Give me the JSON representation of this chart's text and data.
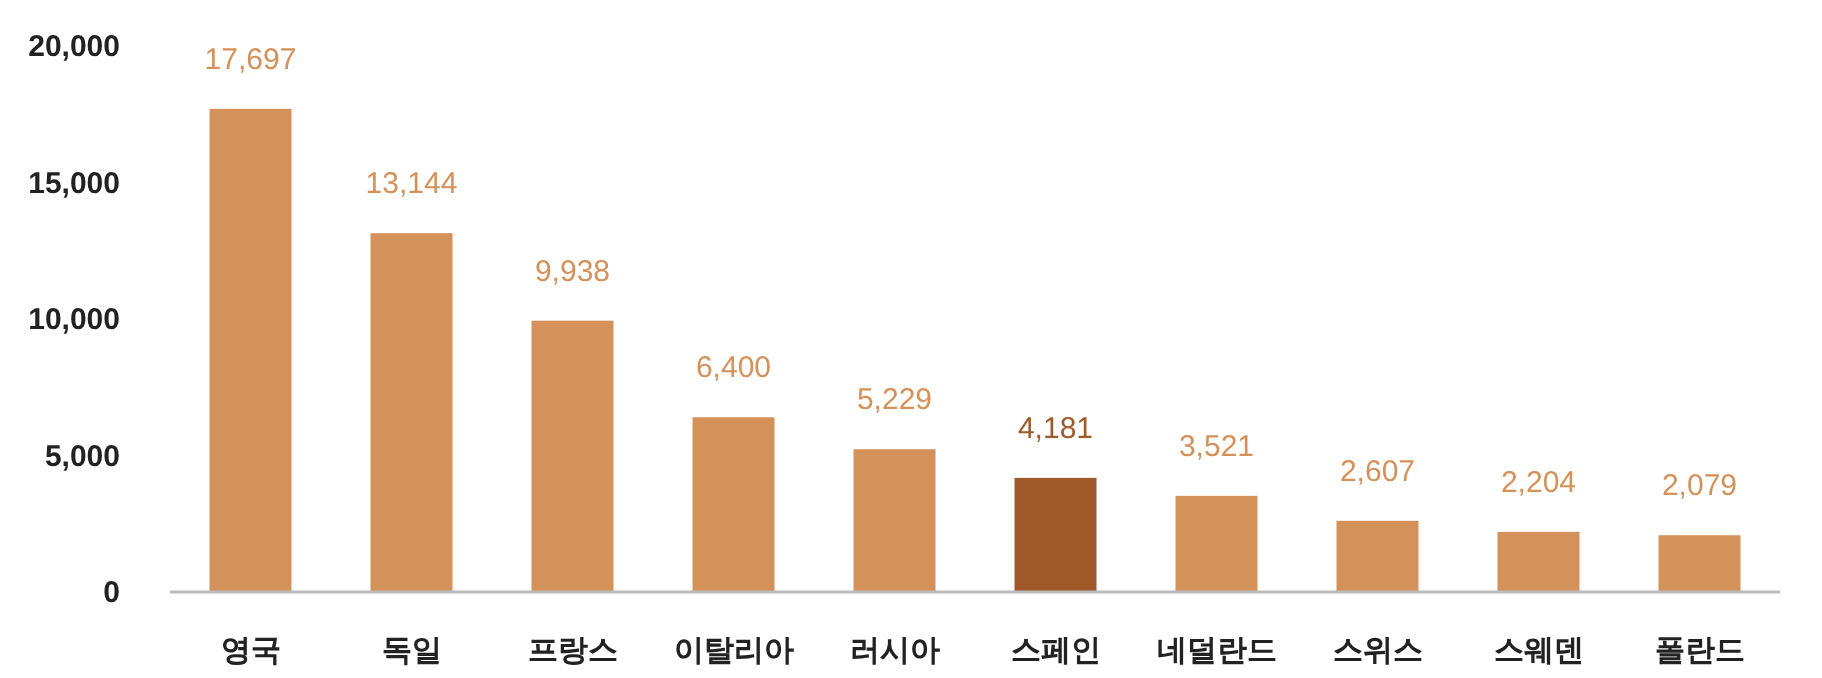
{
  "chart_data": {
    "type": "bar",
    "categories": [
      "영국",
      "독일",
      "프랑스",
      "이탈리아",
      "러시아",
      "스페인",
      "네덜란드",
      "스위스",
      "스웨덴",
      "폴란드"
    ],
    "values": [
      17697,
      13144,
      9938,
      6400,
      5229,
      4181,
      3521,
      2607,
      2204,
      2079
    ],
    "colors": [
      "#d4915a",
      "#d4915a",
      "#d4915a",
      "#d4915a",
      "#d4915a",
      "#a0592a",
      "#d4915a",
      "#d4915a",
      "#d4915a",
      "#d4915a"
    ],
    "ylim": [
      0,
      20000
    ],
    "yticks": [
      {
        "value": 0,
        "label": "0"
      },
      {
        "value": 5000,
        "label": "5,000"
      },
      {
        "value": 10000,
        "label": "10,000"
      },
      {
        "value": 15000,
        "label": "15,000"
      },
      {
        "value": 20000,
        "label": "20,000"
      }
    ],
    "data_labels": true,
    "value_labels": [
      "17,697",
      "13,144",
      "9,938",
      "6,400",
      "5,229",
      "4,181",
      "3,521",
      "2,607",
      "2,204",
      "2,079"
    ]
  }
}
